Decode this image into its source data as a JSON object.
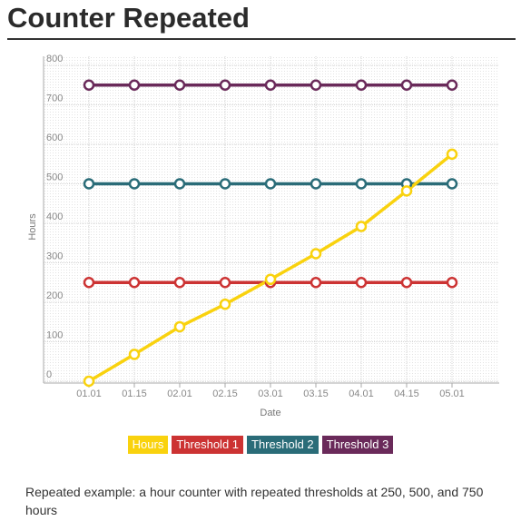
{
  "page": {
    "title": "Counter Repeated",
    "caption": "Repeated example: a hour counter with repeated thresholds at 250, 500, and 750 hours"
  },
  "chart_data": {
    "type": "line",
    "xlabel": "Date",
    "ylabel": "Hours",
    "categories": [
      "01.01",
      "01.15",
      "02.01",
      "02.15",
      "03.01",
      "03.15",
      "04.01",
      "04.15",
      "05.01"
    ],
    "ylim": [
      0,
      800
    ],
    "yticks": [
      "0",
      "100",
      "200",
      "300",
      "400",
      "500",
      "600",
      "700",
      "800"
    ],
    "grid": true,
    "legend_position": "bottom",
    "series": [
      {
        "name": "Hours",
        "color": "#f9d20e",
        "values": [
          0,
          68,
          138,
          195,
          258,
          323,
          392,
          482,
          575
        ]
      },
      {
        "name": "Threshold 1",
        "color": "#cc3333",
        "values": [
          250,
          250,
          250,
          250,
          250,
          250,
          250,
          250,
          250
        ]
      },
      {
        "name": "Threshold 2",
        "color": "#2a6c78",
        "values": [
          500,
          500,
          500,
          500,
          500,
          500,
          500,
          500,
          500
        ]
      },
      {
        "name": "Threshold 3",
        "color": "#6a2a5a",
        "values": [
          750,
          750,
          750,
          750,
          750,
          750,
          750,
          750,
          750
        ]
      }
    ]
  }
}
